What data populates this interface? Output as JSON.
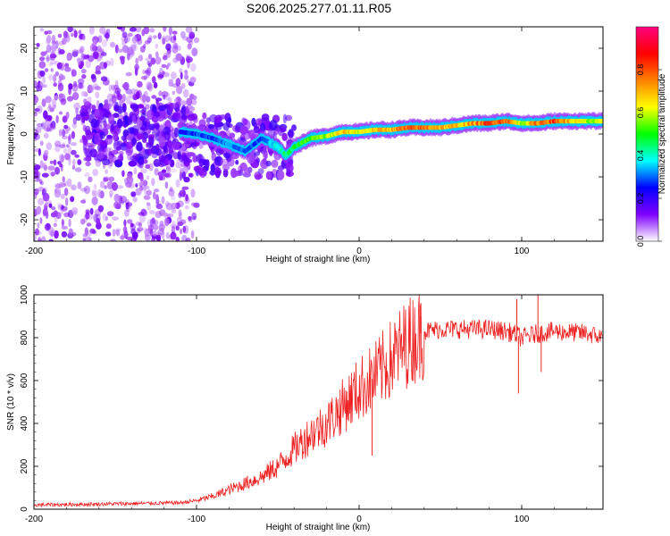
{
  "title": "S206.2025.277.01.11.R05",
  "chart_data": [
    {
      "type": "heatmap",
      "name": "spectrogram",
      "xlabel": "Height of straight line (km)",
      "ylabel": "Frequency (Hz)",
      "xlim": [
        -200,
        150
      ],
      "ylim": [
        -25,
        25
      ],
      "xticks": [
        -200,
        -100,
        0,
        100
      ],
      "yticks": [
        -20,
        -10,
        0,
        10,
        20
      ],
      "colorbar": {
        "label": "Normalized spectral amplitude",
        "range": [
          0,
          1
        ],
        "ticks": [
          "0.0",
          "0.2",
          "0.4",
          "0.6",
          "0.8"
        ],
        "tick_values": [
          0.0,
          0.2,
          0.4,
          0.6,
          0.8
        ],
        "colors": [
          "#ffffff",
          "#8000ff",
          "#0000ff",
          "#00ffff",
          "#00ff00",
          "#ffff00",
          "#ff8000",
          "#ff0000",
          "#ff0080"
        ]
      },
      "ridge": {
        "x": [
          -110,
          -100,
          -90,
          -80,
          -70,
          -60,
          -50,
          -45,
          -40,
          -30,
          -20,
          -10,
          0,
          10,
          20,
          30,
          40,
          50,
          60,
          70,
          80,
          90,
          100,
          110,
          120,
          130,
          140,
          150
        ],
        "freq": [
          0.5,
          0,
          -1,
          -2.5,
          -4,
          -1,
          -3,
          -5,
          -3,
          -1,
          -0.5,
          0.5,
          0.5,
          1,
          1,
          1.5,
          1.5,
          1.5,
          2,
          2.5,
          2.5,
          3,
          2.5,
          2.5,
          3,
          3,
          3,
          3
        ],
        "amplitude": [
          0.25,
          0.3,
          0.3,
          0.35,
          0.3,
          0.3,
          0.4,
          0.45,
          0.5,
          0.55,
          0.6,
          0.7,
          0.65,
          0.7,
          0.75,
          0.8,
          0.8,
          0.75,
          0.7,
          0.75,
          0.85,
          0.85,
          0.6,
          0.8,
          0.85,
          0.7,
          0.6,
          0.6
        ]
      },
      "scatter_region": {
        "x_from": -200,
        "x_to": -100,
        "freq_from": -25,
        "freq_to": 25,
        "amplitude_range": [
          0.05,
          0.15
        ]
      }
    },
    {
      "type": "line",
      "name": "snr",
      "xlabel": "Height of straight line (km)",
      "ylabel": "SNR (10 * v/v)",
      "xlim": [
        -200,
        150
      ],
      "ylim": [
        0,
        1000
      ],
      "xticks": [
        -200,
        -100,
        0,
        100
      ],
      "yticks": [
        0,
        200,
        400,
        600,
        800,
        1000
      ],
      "color": "#ee2222",
      "trend": {
        "x": [
          -200,
          -150,
          -110,
          -100,
          -90,
          -80,
          -70,
          -60,
          -50,
          -40,
          -30,
          -20,
          -10,
          0,
          10,
          20,
          30,
          40,
          50,
          60,
          80,
          90,
          95,
          100,
          110,
          120,
          140,
          150
        ],
        "y": [
          20,
          25,
          30,
          40,
          60,
          90,
          120,
          150,
          200,
          280,
          350,
          400,
          480,
          560,
          620,
          700,
          780,
          830,
          840,
          840,
          840,
          830,
          820,
          800,
          820,
          830,
          820,
          800
        ]
      },
      "noise_fraction": 0.12,
      "spikes": [
        {
          "x": 97,
          "y": 980
        },
        {
          "x": 98,
          "y": 540
        },
        {
          "x": 110,
          "y": 1000
        },
        {
          "x": 112,
          "y": 640
        },
        {
          "x": 8,
          "y": 250
        },
        {
          "x": 38,
          "y": 900
        }
      ]
    }
  ]
}
